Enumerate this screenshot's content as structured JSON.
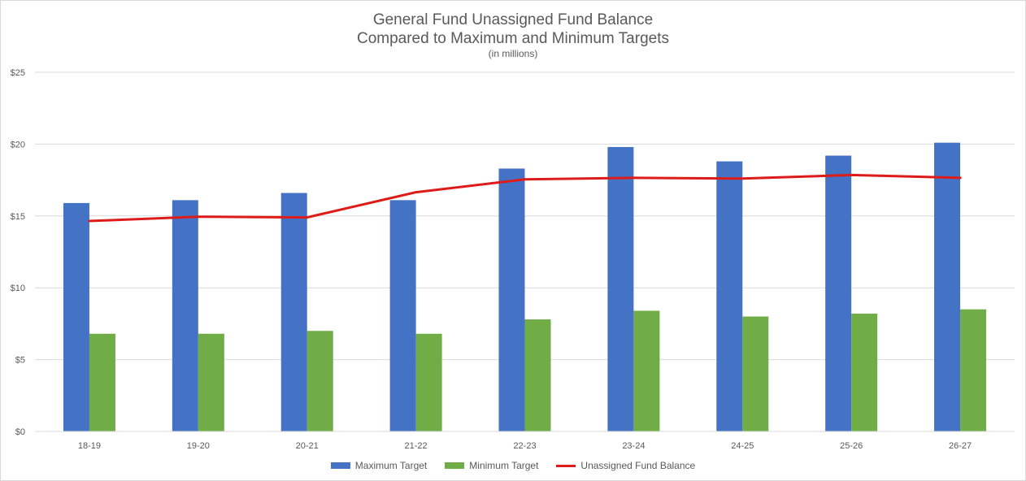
{
  "colors": {
    "max": "#4472C4",
    "min": "#70AD47",
    "balance": "#DD1C1A",
    "grid": "#d9d9d9",
    "text": "#595959"
  },
  "chart_data": {
    "type": "bar",
    "title_line1": "General Fund Unassigned Fund Balance",
    "title_line2": "Compared to Maximum and Minimum Targets",
    "subtitle": "(in millions)",
    "categories": [
      "18-19",
      "19-20",
      "20-21",
      "21-22",
      "22-23",
      "23-24",
      "24-25",
      "25-26",
      "26-27"
    ],
    "y_ticks": [
      0,
      5,
      10,
      15,
      20,
      25
    ],
    "y_tick_labels": [
      "$0",
      "$5",
      "$10",
      "$15",
      "$20",
      "$25"
    ],
    "ylim": [
      0,
      25
    ],
    "grid": true,
    "legend_position": "bottom",
    "series": [
      {
        "name": "Maximum Target",
        "kind": "bar",
        "color_key": "max",
        "values": [
          15.9,
          16.1,
          16.6,
          16.1,
          18.3,
          19.8,
          18.8,
          19.2,
          20.1
        ]
      },
      {
        "name": "Minimum Target",
        "kind": "bar",
        "color_key": "min",
        "values": [
          6.8,
          6.8,
          7.0,
          6.8,
          7.8,
          8.4,
          8.0,
          8.2,
          8.5
        ]
      },
      {
        "name": "Unassigned Fund Balance",
        "kind": "line",
        "color_key": "balance",
        "values": [
          14.65,
          14.95,
          14.9,
          16.65,
          17.55,
          17.65,
          17.6,
          17.85,
          17.65
        ]
      }
    ]
  }
}
